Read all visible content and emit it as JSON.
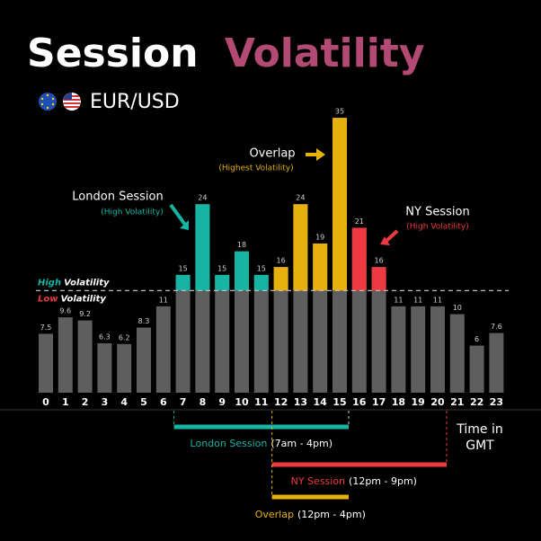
{
  "title": [
    "Session",
    "Volatility"
  ],
  "subtitle": "EUR/USD",
  "chart_data": {
    "type": "bar",
    "categories": [
      "0",
      "1",
      "2",
      "3",
      "4",
      "5",
      "6",
      "7",
      "8",
      "9",
      "10",
      "11",
      "12",
      "13",
      "14",
      "15",
      "16",
      "17",
      "18",
      "19",
      "20",
      "21",
      "22",
      "23"
    ],
    "values": [
      7.5,
      9.6,
      9.2,
      6.3,
      6.2,
      8.3,
      11,
      15,
      24,
      15,
      18,
      15,
      16,
      24,
      19,
      35,
      21,
      16,
      11,
      11,
      11,
      10,
      6,
      7.6
    ],
    "colors": [
      "#5e5e5e",
      "#5e5e5e",
      "#5e5e5e",
      "#5e5e5e",
      "#5e5e5e",
      "#5e5e5e",
      "#5e5e5e",
      "#17b3a3",
      "#17b3a3",
      "#17b3a3",
      "#17b3a3",
      "#17b3a3",
      "#e6b00f",
      "#e6b00f",
      "#e6b00f",
      "#e6b00f",
      "#ec3a40",
      "#ec3a40",
      "#5e5e5e",
      "#5e5e5e",
      "#5e5e5e",
      "#5e5e5e",
      "#5e5e5e",
      "#5e5e5e"
    ],
    "base_color": "#5e5e5e",
    "threshold": 13,
    "threshold_labels": [
      {
        "word": "High",
        "rest": "Volatility",
        "color": "#17b3a3"
      },
      {
        "word": "Low",
        "rest": "Volatility",
        "color": "#ec3a40"
      }
    ],
    "callouts": [
      {
        "title": "London Session",
        "note": "(High Volatility)",
        "color": "#17b3a3"
      },
      {
        "title": "Overlap",
        "note": "(Highest Volatility)",
        "color": "#e6b00f"
      },
      {
        "title": "NY Session",
        "note": "(High Volatility)",
        "color": "#ec3a40"
      }
    ],
    "ranges": [
      {
        "name": "London Session",
        "time": "(7am - 4pm)",
        "start": 7,
        "end": 16,
        "color": "#17b3a3"
      },
      {
        "name": "NY Session",
        "time": "(12pm - 9pm)",
        "start": 12,
        "end": 21,
        "color": "#ec3a40"
      },
      {
        "name": "Overlap",
        "time": "(12pm - 4pm)",
        "start": 12,
        "end": 16,
        "color": "#e6b00f"
      }
    ],
    "x_label": [
      "Time in",
      "GMT"
    ]
  }
}
